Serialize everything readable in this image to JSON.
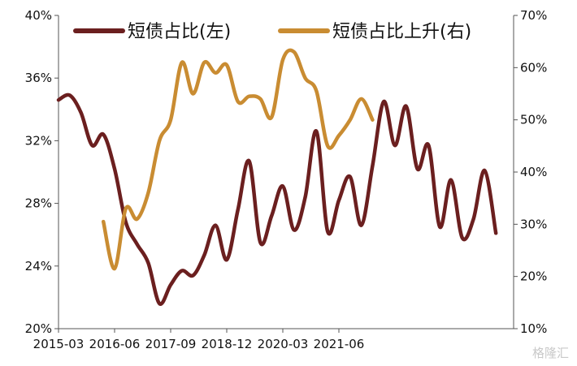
{
  "chart_data": {
    "type": "line",
    "x_ticks": [
      "2015-03",
      "2016-06",
      "2017-09",
      "2018-12",
      "2020-03",
      "2021-06"
    ],
    "left_axis": {
      "ylim": [
        20,
        40
      ],
      "ticks": [
        "20%",
        "24%",
        "28%",
        "32%",
        "36%",
        "40%"
      ]
    },
    "right_axis": {
      "ylim": [
        10,
        70
      ],
      "ticks": [
        "10%",
        "20%",
        "30%",
        "40%",
        "50%",
        "60%",
        "70%"
      ]
    },
    "legend_position": "top",
    "grid": false,
    "series": [
      {
        "name": "短债占比(左)",
        "axis": "left",
        "color": "#6b1f1f",
        "x_start": "2015-03",
        "values": [
          34.6,
          34.9,
          33.8,
          31.7,
          32.4,
          30.2,
          26.8,
          25.4,
          24.2,
          21.6,
          22.8,
          23.7,
          23.4,
          24.7,
          26.6,
          24.4,
          27.6,
          30.7,
          25.5,
          27.2,
          29.1,
          26.3,
          28.4,
          32.6,
          26.2,
          28.2,
          29.7,
          26.6,
          30.4,
          34.5,
          31.7,
          34.2,
          30.2,
          31.7,
          26.5,
          29.5,
          25.8,
          27.0,
          30.1,
          26.1
        ]
      },
      {
        "name": "短债占比上升(右)",
        "axis": "right",
        "color": "#c98c32",
        "x_start": "2016-03",
        "values": [
          30.5,
          21.5,
          33.0,
          31.0,
          36.0,
          46.0,
          50.0,
          61.0,
          55.0,
          61.0,
          59.0,
          60.5,
          53.5,
          54.5,
          54.0,
          50.5,
          61.5,
          63.0,
          58.0,
          55.5,
          45.0,
          47.0,
          50.0,
          54.0,
          50.0
        ]
      }
    ]
  },
  "watermark": "格隆汇"
}
